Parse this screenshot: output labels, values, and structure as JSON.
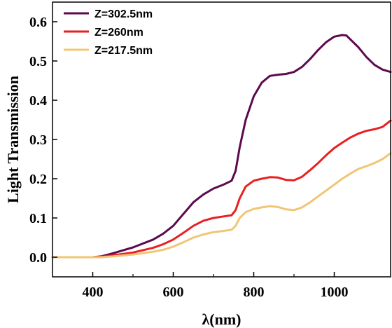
{
  "chart_data": {
    "type": "line",
    "title": "",
    "xlabel": "λ(nm)",
    "ylabel": "Light Transmission",
    "xlim": [
      300,
      1140
    ],
    "ylim": [
      -0.05,
      0.65
    ],
    "xticks": [
      400,
      600,
      800,
      1000
    ],
    "yticks": [
      0.0,
      0.1,
      0.2,
      0.3,
      0.4,
      0.5,
      0.6
    ],
    "ytick_labels": [
      "0.0",
      "0.1",
      "0.2",
      "0.3",
      "0.4",
      "0.5",
      "0.6"
    ],
    "grid": false,
    "legend_position": "top-left",
    "series": [
      {
        "name": "Z=302.5nm",
        "color": "#5c0a4e",
        "x": [
          300,
          350,
          400,
          420,
          450,
          500,
          550,
          575,
          600,
          625,
          650,
          675,
          700,
          725,
          745,
          755,
          765,
          780,
          800,
          820,
          840,
          860,
          880,
          900,
          920,
          940,
          960,
          980,
          1000,
          1020,
          1030,
          1040,
          1060,
          1080,
          1100,
          1120,
          1140
        ],
        "y": [
          0.0,
          0.0,
          0.0,
          0.002,
          0.01,
          0.025,
          0.045,
          0.06,
          0.08,
          0.11,
          0.14,
          0.16,
          0.175,
          0.185,
          0.195,
          0.22,
          0.28,
          0.35,
          0.41,
          0.445,
          0.462,
          0.465,
          0.467,
          0.472,
          0.485,
          0.505,
          0.528,
          0.548,
          0.562,
          0.566,
          0.565,
          0.555,
          0.535,
          0.51,
          0.49,
          0.478,
          0.472
        ]
      },
      {
        "name": "Z=260nm",
        "color": "#e82020",
        "x": [
          300,
          350,
          400,
          420,
          450,
          500,
          550,
          575,
          600,
          625,
          650,
          675,
          700,
          725,
          745,
          755,
          765,
          780,
          800,
          820,
          840,
          860,
          880,
          900,
          920,
          940,
          960,
          980,
          1000,
          1020,
          1040,
          1060,
          1080,
          1100,
          1120,
          1140
        ],
        "y": [
          0.0,
          0.0,
          0.0,
          0.001,
          0.005,
          0.012,
          0.024,
          0.033,
          0.045,
          0.062,
          0.08,
          0.093,
          0.1,
          0.104,
          0.107,
          0.12,
          0.15,
          0.18,
          0.195,
          0.2,
          0.204,
          0.203,
          0.197,
          0.196,
          0.205,
          0.222,
          0.24,
          0.26,
          0.278,
          0.292,
          0.305,
          0.315,
          0.322,
          0.326,
          0.332,
          0.348
        ]
      },
      {
        "name": "Z=217.5nm",
        "color": "#f0c674",
        "x": [
          300,
          350,
          400,
          420,
          450,
          500,
          550,
          575,
          600,
          625,
          650,
          675,
          700,
          725,
          745,
          755,
          765,
          780,
          800,
          820,
          840,
          860,
          880,
          900,
          920,
          940,
          960,
          980,
          1000,
          1020,
          1040,
          1060,
          1080,
          1100,
          1120,
          1140
        ],
        "y": [
          0.0,
          0.0,
          0.0,
          0.0,
          0.002,
          0.007,
          0.014,
          0.019,
          0.027,
          0.038,
          0.05,
          0.058,
          0.064,
          0.067,
          0.07,
          0.08,
          0.1,
          0.115,
          0.123,
          0.127,
          0.13,
          0.128,
          0.122,
          0.12,
          0.127,
          0.14,
          0.155,
          0.17,
          0.185,
          0.2,
          0.213,
          0.225,
          0.232,
          0.24,
          0.25,
          0.265
        ]
      }
    ]
  }
}
